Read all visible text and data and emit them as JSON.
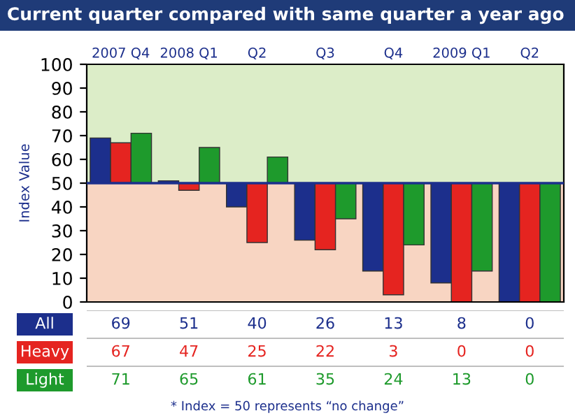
{
  "chart_data": {
    "type": "bar",
    "title": "Current quarter compared with same quarter a year ago",
    "categories": [
      "2007 Q4",
      "2008 Q1",
      "Q2",
      "Q3",
      "Q4",
      "2009 Q1",
      "Q2"
    ],
    "series": [
      {
        "name": "All",
        "color": "#1c2f8c",
        "base": [
          50,
          50,
          50,
          50,
          50,
          50,
          50
        ],
        "values": [
          19,
          1,
          -10,
          -24,
          -37,
          -42,
          -50
        ],
        "value_labels": [
          "69",
          "51",
          "40",
          "26",
          "13",
          "8",
          "0"
        ]
      },
      {
        "name": "Heavy",
        "color": "#e52420",
        "base": [
          50,
          50,
          50,
          50,
          50,
          50,
          50
        ],
        "values": [
          17,
          -3,
          -25,
          -28,
          -47,
          -50,
          -50
        ],
        "value_labels": [
          "67",
          "47",
          "25",
          "22",
          "3",
          "0",
          "0"
        ]
      },
      {
        "name": "Light",
        "color": "#1e9a2c",
        "base": [
          50,
          50,
          50,
          50,
          50,
          50,
          50
        ],
        "values": [
          21,
          15,
          11,
          -15,
          -26,
          -37,
          -50
        ],
        "value_labels": [
          "71",
          "65",
          "61",
          "35",
          "24",
          "13",
          "0"
        ]
      }
    ],
    "ylabel": "Index Value",
    "ylim": [
      0,
      100
    ],
    "yticks": [
      0,
      10,
      20,
      30,
      40,
      50,
      60,
      70,
      80,
      90,
      100
    ],
    "ref_lines": [
      {
        "axis": "y",
        "value": 50,
        "color": "#1c2f8c"
      }
    ],
    "bands": [
      {
        "axis": "y",
        "from": 50,
        "to": 100,
        "color": "#dcedc8"
      },
      {
        "axis": "y",
        "from": 0,
        "to": 50,
        "color": "#f8d5c2"
      }
    ],
    "grid": false,
    "legend": "bottom left",
    "annotations": [
      "* Index = 50 represents “no change”"
    ]
  }
}
